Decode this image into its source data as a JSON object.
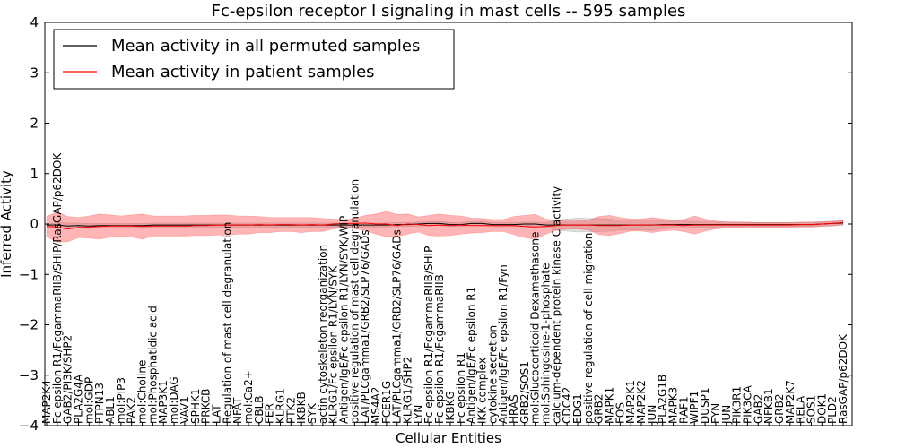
{
  "chart_data": {
    "type": "line",
    "title": "Fc-epsilon receptor I signaling in mast cells -- 595 samples",
    "xlabel": "Cellular Entities",
    "ylabel": "Inferred Activity",
    "ylim": [
      -4,
      4
    ],
    "yticks": [
      "4",
      "3",
      "2",
      "1",
      "0",
      "−1",
      "−2",
      "−3",
      "−4"
    ],
    "legend_position": "top-left",
    "categories": [
      "MAP2K4",
      "Fc epsilon R1/FcgammaRIIB/SHIP/RasGAP/p62DOK",
      "GAB2/PI3K/SHP2",
      "PLA2G4A",
      "mol:GDP",
      "PTPN13",
      "ABL1",
      "mol:PIP3",
      "PAK2",
      "mol:Choline",
      "mol:Phosphatidic acid",
      "MAP3K1",
      "mol:DAG",
      "VAV1",
      "SPHK1",
      "PRKCB",
      "LAT",
      "Regulation of mast cell degranulation",
      "NFAT",
      "mol:Ca2+",
      "CBLB",
      "FER",
      "KLRG1",
      "PTK2",
      "IKBKB",
      "SYK",
      "actin cytoskeleton reorganization",
      "KLRG1/Fc epsilon R1/LYN/SYK",
      "Antigen/IgE/Fc epsilon R1/LYN/SYK/WIP",
      "positive regulation of mast cell degranulation",
      "LAT/PLCgamma1/GRB2/SLP76/GADs",
      "MS4A2",
      "FCER1G",
      "LAT/PLCgamma1/GRB2/SLP76/GADs",
      "KLRG1/SHP2",
      "LYN",
      "Fc epsilon R1/FcgammaRIIB/SHIP",
      "Fc epsilon R1/FcgammaRIIB",
      "IKBKG",
      "Fc epsilon R1",
      "Antigen/IgE/Fc epsilon R1",
      "IKK complex",
      "cytokine secretion",
      "Antigen/IgE/Fc epsilon R1/Fyn",
      "HRAS",
      "GRB2/SOS1",
      "mol:Glucocorticoid Dexamethasone",
      "mol:Sphingosine-1-phosphate",
      "calcium-dependent protein kinase C activity",
      "CDC42",
      "EDG1",
      "positive regulation of cell migration",
      "GRB2",
      "MAPK1",
      "FOS",
      "MAP2K1",
      "MAP2K2",
      "JUN",
      "PLA2G1B",
      "MAPK3",
      "RAF1",
      "WIPF1",
      "DUSP1",
      "FYN",
      "JUN",
      "PIK3R1",
      "PIK3CA",
      "GAB2",
      "NFKB1",
      "GRB2",
      "MAP2K7",
      "RELA",
      "SOS1",
      "DOK1",
      "PLD2",
      "RasGAP/p62DOK"
    ],
    "series": [
      {
        "name": "Mean activity in all permuted samples",
        "color": "#000000",
        "values": [
          -0.02,
          -0.02,
          -0.04,
          -0.03,
          -0.04,
          -0.03,
          -0.03,
          -0.03,
          -0.03,
          -0.03,
          -0.02,
          -0.02,
          -0.02,
          -0.02,
          -0.02,
          -0.02,
          -0.02,
          -0.02,
          -0.02,
          -0.02,
          -0.02,
          -0.02,
          -0.02,
          -0.02,
          -0.02,
          -0.02,
          -0.02,
          -0.02,
          -0.02,
          -0.02,
          -0.02,
          -0.02,
          -0.02,
          -0.01,
          -0.01,
          0.0,
          0.01,
          0.01,
          -0.01,
          -0.01,
          0.01,
          0.01,
          -0.01,
          -0.01,
          -0.01,
          0.0,
          0.0,
          -0.02,
          -0.02,
          -0.02,
          -0.02,
          -0.02,
          -0.02,
          -0.02,
          -0.02,
          -0.02,
          -0.02,
          -0.02,
          -0.01,
          -0.01,
          -0.01,
          -0.01,
          -0.01,
          -0.01,
          -0.01,
          -0.01,
          -0.01,
          -0.01,
          -0.01,
          -0.01,
          -0.01,
          -0.01,
          -0.01,
          0.0,
          0.01,
          0.02
        ],
        "band": [
          0.02,
          0.05,
          0.06,
          0.05,
          0.05,
          0.04,
          0.04,
          0.04,
          0.04,
          0.04,
          0.04,
          0.04,
          0.04,
          0.04,
          0.04,
          0.04,
          0.04,
          0.04,
          0.04,
          0.04,
          0.04,
          0.04,
          0.04,
          0.04,
          0.04,
          0.04,
          0.04,
          0.04,
          0.04,
          0.04,
          0.04,
          0.04,
          0.04,
          0.04,
          0.04,
          0.04,
          0.04,
          0.04,
          0.04,
          0.04,
          0.04,
          0.04,
          0.04,
          0.04,
          0.04,
          0.04,
          0.04,
          0.05,
          0.1,
          0.12,
          0.14,
          0.13,
          0.13,
          0.12,
          0.1,
          0.1,
          0.1,
          0.1,
          0.09,
          0.07,
          0.07,
          0.06,
          0.06,
          0.05,
          0.05,
          0.05,
          0.04,
          0.04,
          0.04,
          0.04,
          0.04,
          0.04,
          0.04,
          0.04,
          0.05,
          0.05
        ]
      },
      {
        "name": "Mean activity in patient samples",
        "color": "#ff0000",
        "values": [
          -0.05,
          -0.06,
          -0.1,
          -0.07,
          -0.06,
          -0.05,
          -0.04,
          -0.04,
          -0.04,
          -0.05,
          -0.04,
          -0.04,
          -0.04,
          -0.04,
          -0.03,
          -0.03,
          -0.02,
          -0.02,
          -0.02,
          -0.02,
          -0.01,
          -0.02,
          -0.01,
          -0.01,
          -0.02,
          -0.01,
          -0.02,
          0.0,
          0.01,
          0.01,
          0.02,
          0.0,
          0.0,
          -0.03,
          0.0,
          -0.01,
          -0.03,
          -0.02,
          -0.03,
          -0.02,
          -0.03,
          -0.03,
          -0.03,
          -0.03,
          -0.03,
          -0.05,
          -0.06,
          -0.05,
          -0.03,
          -0.02,
          -0.02,
          -0.02,
          -0.03,
          -0.03,
          -0.03,
          -0.02,
          -0.02,
          -0.02,
          -0.02,
          -0.02,
          -0.03,
          -0.02,
          -0.02,
          -0.02,
          -0.02,
          -0.02,
          -0.02,
          -0.02,
          -0.02,
          -0.02,
          -0.02,
          -0.01,
          -0.01,
          0.0,
          0.01,
          0.03
        ],
        "band": [
          0.2,
          0.3,
          0.25,
          0.2,
          0.22,
          0.25,
          0.22,
          0.2,
          0.22,
          0.25,
          0.2,
          0.2,
          0.2,
          0.2,
          0.2,
          0.2,
          0.2,
          0.2,
          0.18,
          0.18,
          0.16,
          0.15,
          0.14,
          0.14,
          0.15,
          0.14,
          0.13,
          0.1,
          0.08,
          0.1,
          0.15,
          0.2,
          0.25,
          0.22,
          0.2,
          0.15,
          0.2,
          0.22,
          0.2,
          0.18,
          0.15,
          0.14,
          0.12,
          0.12,
          0.18,
          0.22,
          0.25,
          0.15,
          0.1,
          0.08,
          0.08,
          0.1,
          0.18,
          0.2,
          0.16,
          0.12,
          0.12,
          0.15,
          0.12,
          0.1,
          0.12,
          0.18,
          0.12,
          0.08,
          0.06,
          0.06,
          0.06,
          0.05,
          0.05,
          0.05,
          0.05,
          0.05,
          0.05,
          0.05,
          0.04,
          0.04
        ]
      }
    ]
  }
}
